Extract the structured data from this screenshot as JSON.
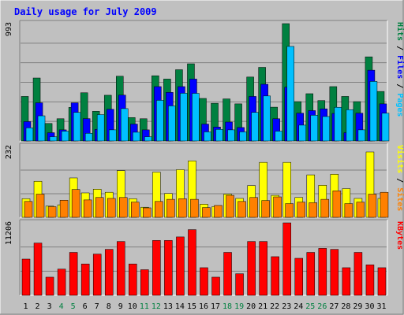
{
  "chart_data": [
    {
      "type": "bar",
      "title": "Daily usage for July 2009",
      "categories": [
        "1",
        "2",
        "3",
        "4",
        "5",
        "6",
        "7",
        "8",
        "9",
        "10",
        "11",
        "12",
        "13",
        "14",
        "15",
        "16",
        "17",
        "18",
        "19",
        "20",
        "21",
        "22",
        "23",
        "24",
        "25",
        "26",
        "27",
        "28",
        "29",
        "30",
        "31"
      ],
      "weekend_days": [
        "4",
        "5",
        "11",
        "12",
        "18",
        "19",
        "25",
        "26"
      ],
      "ymax_label": "993",
      "ylim": [
        0,
        993
      ],
      "legend": [
        "Pages",
        "Files",
        "Hits"
      ],
      "series": [
        {
          "name": "Hits",
          "color": "#008040",
          "values": [
            377,
            533,
            148,
            188,
            284,
            408,
            251,
            387,
            548,
            198,
            188,
            552,
            524,
            603,
            653,
            360,
            319,
            356,
            314,
            541,
            623,
            286,
            993,
            333,
            400,
            342,
            460,
            377,
            333,
            712,
            419
          ]
        },
        {
          "name": "Files",
          "color": "#0000ff",
          "values": [
            164,
            323,
            70,
            94,
            323,
            189,
            98,
            268,
            388,
            143,
            94,
            460,
            411,
            460,
            524,
            143,
            118,
            160,
            114,
            377,
            480,
            188,
            455,
            235,
            257,
            272,
            233,
            70,
            235,
            599,
            314
          ]
        },
        {
          "name": "Pages",
          "color": "#00c0ff",
          "values": [
            111,
            213,
            36,
            83,
            242,
            65,
            223,
            94,
            274,
            74,
            36,
            344,
            297,
            404,
            403,
            77,
            98,
            94,
            77,
            242,
            381,
            83,
            800,
            134,
            218,
            207,
            285,
            265,
            94,
            504,
            235
          ]
        }
      ]
    },
    {
      "type": "bar",
      "categories": [
        "1",
        "2",
        "3",
        "4",
        "5",
        "6",
        "7",
        "8",
        "9",
        "10",
        "11",
        "12",
        "13",
        "14",
        "15",
        "16",
        "17",
        "18",
        "19",
        "20",
        "21",
        "22",
        "23",
        "24",
        "25",
        "26",
        "27",
        "28",
        "29",
        "30",
        "31"
      ],
      "ymax_label": "232",
      "ylim": [
        0,
        232
      ],
      "legend": [
        "Sites",
        "Visits"
      ],
      "series": [
        {
          "name": "Visits",
          "color": "#ffff00",
          "values": [
            61,
            118,
            37,
            41,
            129,
            80,
            92,
            82,
            153,
            61,
            33,
            148,
            78,
            156,
            185,
            43,
            35,
            76,
            62,
            104,
            180,
            72,
            180,
            65,
            139,
            105,
            141,
            94,
            62,
            214,
            62
          ]
        },
        {
          "name": "Sites",
          "color": "#ff8000",
          "values": [
            52,
            76,
            35,
            56,
            91,
            57,
            65,
            62,
            65,
            50,
            31,
            52,
            59,
            61,
            59,
            32,
            39,
            72,
            52,
            65,
            55,
            67,
            45,
            50,
            48,
            59,
            87,
            45,
            50,
            76,
            82
          ]
        }
      ]
    },
    {
      "type": "bar",
      "categories": [
        "1",
        "2",
        "3",
        "4",
        "5",
        "6",
        "7",
        "8",
        "9",
        "10",
        "11",
        "12",
        "13",
        "14",
        "15",
        "16",
        "17",
        "18",
        "19",
        "20",
        "21",
        "22",
        "23",
        "24",
        "25",
        "26",
        "27",
        "28",
        "29",
        "30",
        "31"
      ],
      "ymax_label": "11206",
      "ylim": [
        0,
        11206
      ],
      "legend": [
        "KBytes"
      ],
      "series": [
        {
          "name": "KBytes",
          "color": "#ff0000",
          "values": [
            5604,
            8088,
            2807,
            4058,
            6636,
            4852,
            6381,
            7109,
            8326,
            4852,
            3962,
            8485,
            8485,
            9028,
            10160,
            4270,
            2807,
            6636,
            3337,
            8326,
            8326,
            5975,
            11206,
            5725,
            6636,
            7262,
            7109,
            4270,
            6636,
            4715,
            4270
          ]
        }
      ]
    }
  ]
}
